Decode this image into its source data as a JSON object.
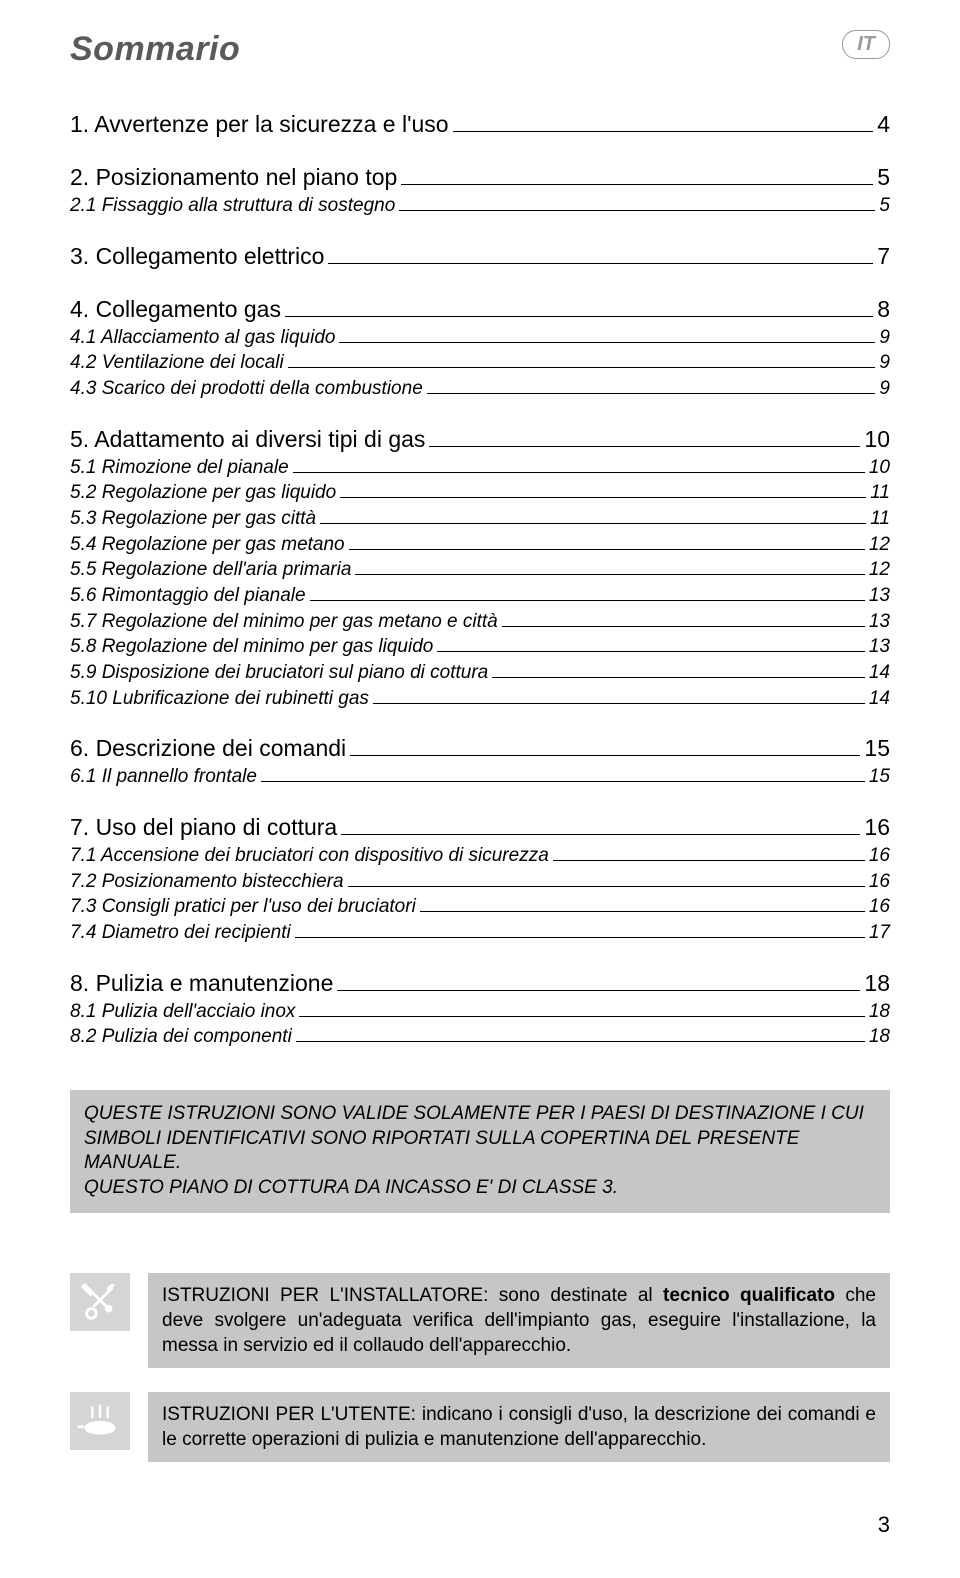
{
  "header": {
    "title": "Sommario",
    "lang_badge": "IT"
  },
  "toc": [
    {
      "num": "1.",
      "label": "Avvertenze per la sicurezza e l'uso",
      "page": "4",
      "children": []
    },
    {
      "num": "2.",
      "label": "Posizionamento nel piano top",
      "page": "5",
      "children": [
        {
          "num": "2.1",
          "label": "Fissaggio alla struttura di sostegno",
          "page": "5"
        }
      ]
    },
    {
      "num": "3.",
      "label": "Collegamento elettrico",
      "page": "7",
      "children": []
    },
    {
      "num": "4.",
      "label": "Collegamento gas",
      "page": "8",
      "children": [
        {
          "num": "4.1",
          "label": "Allacciamento al gas liquido",
          "page": "9"
        },
        {
          "num": "4.2",
          "label": "Ventilazione dei locali",
          "page": "9"
        },
        {
          "num": "4.3",
          "label": "Scarico dei prodotti della combustione",
          "page": "9"
        }
      ]
    },
    {
      "num": "5.",
      "label": "Adattamento ai diversi tipi di gas",
      "page": "10",
      "children": [
        {
          "num": "5.1",
          "label": "Rimozione del pianale",
          "page": "10"
        },
        {
          "num": "5.2",
          "label": "Regolazione per gas liquido",
          "page": "11"
        },
        {
          "num": "5.3",
          "label": "Regolazione per gas città",
          "page": "11"
        },
        {
          "num": "5.4",
          "label": "Regolazione per gas metano",
          "page": "12"
        },
        {
          "num": "5.5",
          "label": "Regolazione dell'aria primaria",
          "page": "12"
        },
        {
          "num": "5.6",
          "label": "Rimontaggio del pianale",
          "page": "13"
        },
        {
          "num": "5.7",
          "label": "Regolazione del minimo per gas metano e città",
          "page": "13"
        },
        {
          "num": "5.8",
          "label": "Regolazione del minimo per gas liquido",
          "page": "13"
        },
        {
          "num": "5.9",
          "label": "Disposizione dei bruciatori sul piano di cottura",
          "page": "14"
        },
        {
          "num": "5.10",
          "label": "Lubrificazione dei rubinetti gas",
          "page": "14"
        }
      ]
    },
    {
      "num": "6.",
      "label": "Descrizione dei comandi",
      "page": "15",
      "children": [
        {
          "num": "6.1",
          "label": "Il pannello frontale",
          "page": "15"
        }
      ]
    },
    {
      "num": "7.",
      "label": "Uso del piano di cottura",
      "page": "16",
      "children": [
        {
          "num": "7.1",
          "label": "Accensione dei bruciatori con dispositivo di sicurezza",
          "page": "16"
        },
        {
          "num": "7.2",
          "label": "Posizionamento bistecchiera",
          "page": "16"
        },
        {
          "num": "7.3",
          "label": "Consigli pratici per l'uso dei bruciatori",
          "page": "16"
        },
        {
          "num": "7.4",
          "label": "Diametro dei recipienti",
          "page": "17"
        }
      ]
    },
    {
      "num": "8.",
      "label": "Pulizia e manutenzione",
      "page": "18",
      "children": [
        {
          "num": "8.1",
          "label": "Pulizia dell'acciaio inox",
          "page": "18"
        },
        {
          "num": "8.2",
          "label": "Pulizia dei componenti",
          "page": "18"
        }
      ]
    }
  ],
  "notice": {
    "line1": "QUESTE ISTRUZIONI SONO VALIDE SOLAMENTE PER I PAESI DI DESTINAZIONE I CUI SIMBOLI IDENTIFICATIVI SONO RIPORTATI SULLA COPERTINA DEL PRESENTE MANUALE.",
    "line2": "QUESTO PIANO DI COTTURA DA INCASSO E' DI CLASSE 3."
  },
  "info_installer": {
    "prefix": "ISTRUZIONI PER L'INSTALLATORE: sono destinate al ",
    "bold": "tecnico qualificato",
    "suffix": " che deve svolgere un'adeguata verifica dell'impianto gas, eseguire l'installazione, la messa in servizio ed il collaudo dell'apparecchio."
  },
  "info_user": {
    "text": "ISTRUZIONI PER L'UTENTE: indicano i consigli d'uso, la descrizione dei comandi e le corrette operazioni di pulizia e manutenzione dell'apparecchio."
  },
  "page_number": "3",
  "colors": {
    "title_color": "#5a5a5a",
    "badge_border": "#9a9a9a",
    "notice_bg": "#c6c6c6",
    "icon_bg": "#d5d5d5"
  }
}
